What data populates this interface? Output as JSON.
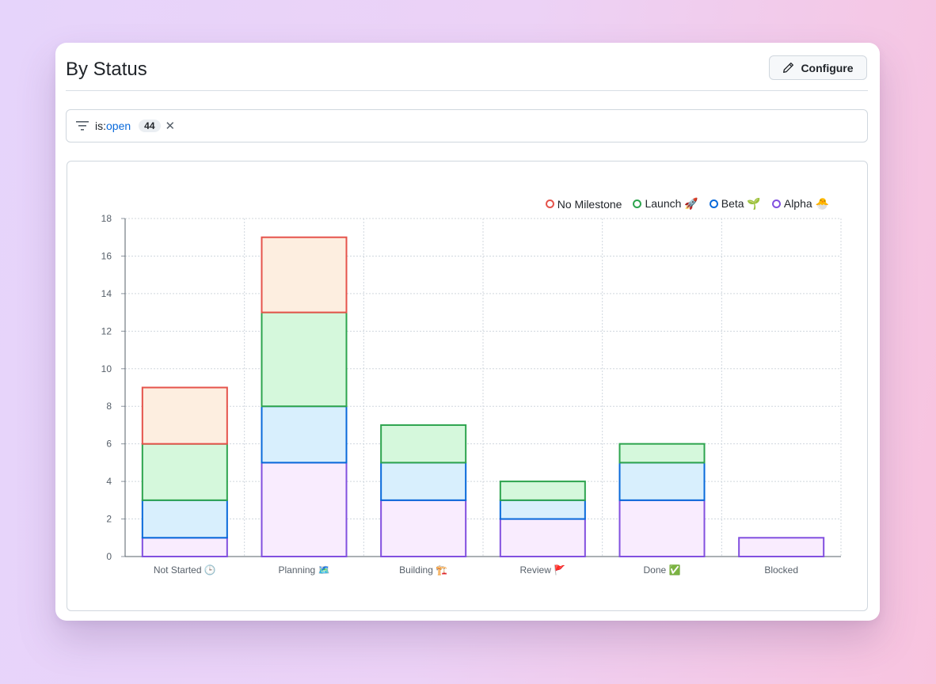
{
  "panel": {
    "title": "By Status",
    "configure_label": "Configure"
  },
  "filter": {
    "key": "is:",
    "value": "open",
    "count": "44",
    "clear_glyph": "✕"
  },
  "chart_data": {
    "type": "bar",
    "stacked": true,
    "categories": [
      "Not Started 🕒",
      "Planning 🗺️",
      "Building 🏗️",
      "Review 🚩",
      "Done ✅",
      "Blocked"
    ],
    "series": [
      {
        "name": "Alpha 🐣",
        "stroke": "#8250df",
        "fill": "#f9ecfe",
        "values": [
          1,
          5,
          3,
          2,
          3,
          1
        ]
      },
      {
        "name": "Beta 🌱",
        "stroke": "#0969da",
        "fill": "#d8effd",
        "values": [
          2,
          3,
          2,
          1,
          2,
          0
        ]
      },
      {
        "name": "Launch 🚀",
        "stroke": "#2da44e",
        "fill": "#d5f8dc",
        "values": [
          3,
          5,
          2,
          1,
          1,
          0
        ]
      },
      {
        "name": "No Milestone",
        "stroke": "#e5534b",
        "fill": "#fdeee0",
        "values": [
          3,
          4,
          0,
          0,
          0,
          0
        ]
      }
    ],
    "legend_order": [
      "No Milestone",
      "Launch 🚀",
      "Beta 🌱",
      "Alpha 🐣"
    ],
    "ylim": [
      0,
      18
    ],
    "yticks": [
      0,
      2,
      4,
      6,
      8,
      10,
      12,
      14,
      16,
      18
    ],
    "grid": true,
    "legend_position": "top-right",
    "title": "",
    "xlabel": "",
    "ylabel": ""
  }
}
